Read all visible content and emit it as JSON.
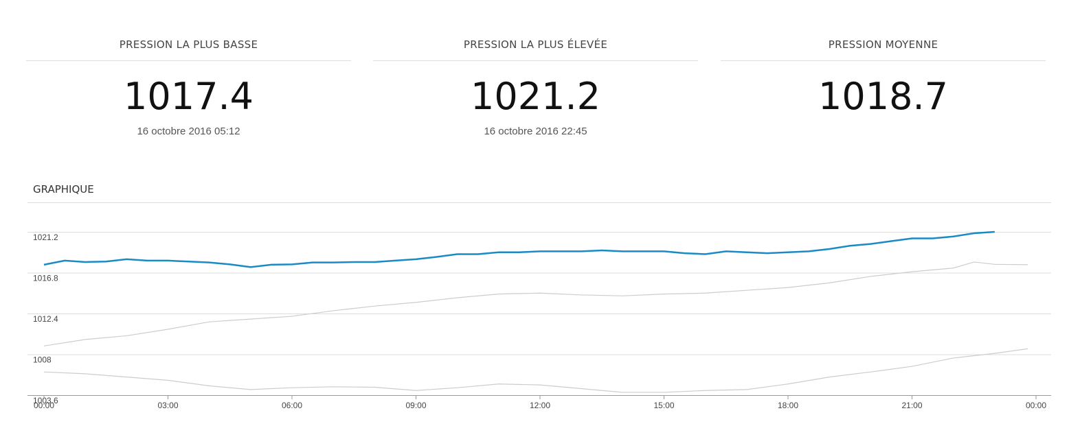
{
  "stats": [
    {
      "label": "PRESSION LA PLUS BASSE",
      "value": 1017.4,
      "date": "16 octobre 2016 05:12"
    },
    {
      "label": "PRESSION LA PLUS ÉLEVÉE",
      "value": 1021.2,
      "date": "16 octobre 2016 22:45"
    },
    {
      "label": "PRESSION MOYENNE",
      "value": 1018.7
    }
  ],
  "chart_data": {
    "type": "line",
    "title": "GRAPHIQUE",
    "xlim": [
      0,
      24
    ],
    "xticks": [
      {
        "value": 0,
        "label": "00:00"
      },
      {
        "value": 3,
        "label": "03:00"
      },
      {
        "value": 6,
        "label": "06:00"
      },
      {
        "value": 9,
        "label": "09:00"
      },
      {
        "value": 12,
        "label": "12:00"
      },
      {
        "value": 15,
        "label": "15:00"
      },
      {
        "value": 18,
        "label": "18:00"
      },
      {
        "value": 21,
        "label": "21:00"
      },
      {
        "value": 24,
        "label": "00:00"
      }
    ],
    "ylim": [
      1003.6,
      1021.2
    ],
    "yticks": [
      1003.6,
      1008,
      1012.4,
      1016.8,
      1021.2
    ],
    "grid": true,
    "series": [
      {
        "color": "#cccccc",
        "x": [
          0,
          1,
          2,
          3,
          4,
          5,
          6,
          7,
          8,
          9,
          10,
          11,
          12,
          13,
          14,
          15,
          16,
          17,
          18,
          19,
          20,
          21,
          22,
          22.5,
          23,
          23.8
        ],
        "values": [
          1008.9,
          1009.6,
          1010.0,
          1010.7,
          1011.5,
          1011.8,
          1012.1,
          1012.7,
          1013.2,
          1013.6,
          1014.1,
          1014.5,
          1014.6,
          1014.4,
          1014.3,
          1014.5,
          1014.6,
          1014.9,
          1015.2,
          1015.7,
          1016.4,
          1016.9,
          1017.3,
          1017.95,
          1017.7,
          1017.66
        ]
      },
      {
        "color": "#cccccc",
        "x": [
          0,
          1,
          2,
          3,
          4,
          5,
          6,
          7,
          8,
          9,
          10,
          11,
          12,
          13,
          14,
          15,
          16,
          17,
          18,
          19,
          20,
          21,
          22,
          23,
          23.8
        ],
        "values": [
          1006.1,
          1005.9,
          1005.55,
          1005.2,
          1004.6,
          1004.2,
          1004.4,
          1004.5,
          1004.45,
          1004.1,
          1004.4,
          1004.8,
          1004.7,
          1004.3,
          1003.9,
          1003.9,
          1004.1,
          1004.2,
          1004.8,
          1005.55,
          1006.1,
          1006.7,
          1007.6,
          1008.1,
          1008.6
        ]
      },
      {
        "color": "#1a8ac6",
        "x": [
          0,
          0.5,
          1,
          1.5,
          2,
          2.5,
          3,
          3.5,
          4,
          4.5,
          5,
          5.5,
          6,
          6.5,
          7,
          7.5,
          8,
          8.5,
          9,
          9.5,
          10,
          10.5,
          11,
          11.5,
          12,
          12.5,
          13,
          13.5,
          14,
          14.5,
          15,
          15.5,
          16,
          16.5,
          17,
          17.5,
          18,
          18.5,
          19,
          19.5,
          20,
          20.5,
          21,
          21.5,
          22,
          22.5,
          23
        ],
        "values": [
          1017.66,
          1018.1,
          1017.95,
          1018.0,
          1018.25,
          1018.1,
          1018.1,
          1018.0,
          1017.9,
          1017.7,
          1017.4,
          1017.66,
          1017.7,
          1017.9,
          1017.9,
          1017.95,
          1017.95,
          1018.1,
          1018.25,
          1018.5,
          1018.8,
          1018.8,
          1019.0,
          1019.0,
          1019.1,
          1019.1,
          1019.1,
          1019.2,
          1019.1,
          1019.1,
          1019.1,
          1018.9,
          1018.8,
          1019.1,
          1019.0,
          1018.9,
          1019.0,
          1019.1,
          1019.35,
          1019.7,
          1019.9,
          1020.2,
          1020.5,
          1020.5,
          1020.7,
          1021.05,
          1021.2
        ]
      }
    ]
  }
}
